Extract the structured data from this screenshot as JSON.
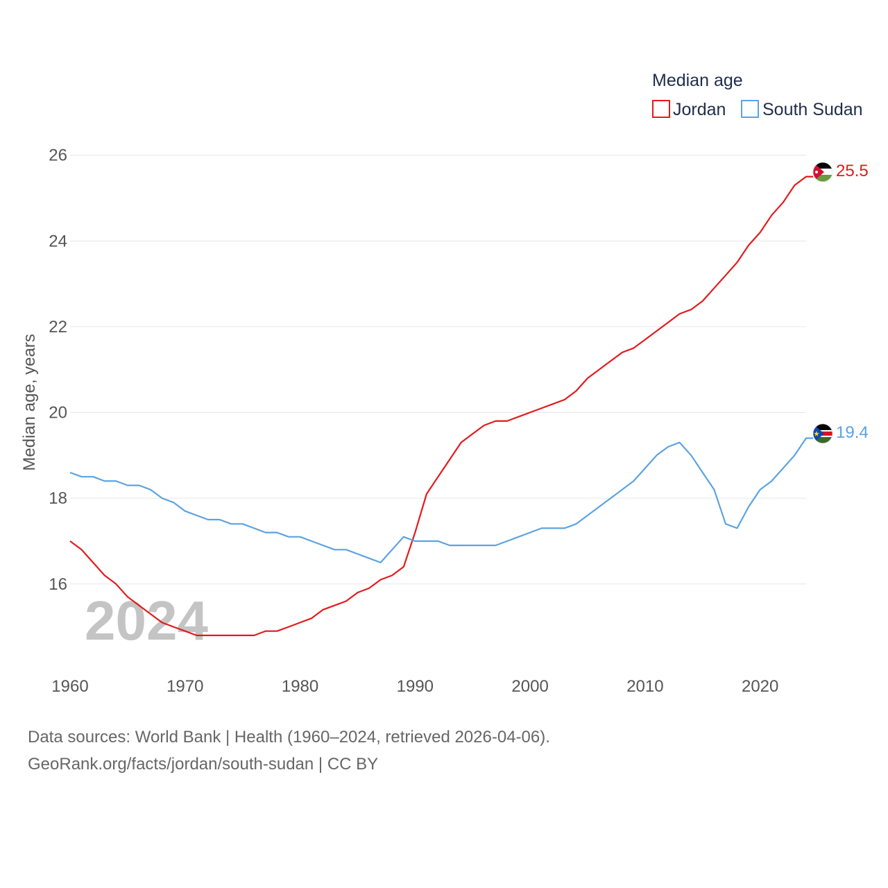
{
  "chart_data": {
    "type": "line",
    "title": "",
    "xlabel": "",
    "ylabel": "Median age, years",
    "xlim": [
      1960,
      2024
    ],
    "ylim": [
      14.2,
      26.4
    ],
    "xticks": [
      1960,
      1970,
      1980,
      1990,
      2000,
      2010,
      2020
    ],
    "yticks": [
      16,
      18,
      20,
      22,
      24,
      26
    ],
    "grid": true,
    "legend": {
      "title": "Median age",
      "position": "top-right"
    },
    "year_label": "2024",
    "series": [
      {
        "name": "Jordan",
        "color": "#e31a1c",
        "end_label": "25.5",
        "flag": "jordan-flag",
        "x": [
          1960,
          1961,
          1962,
          1963,
          1964,
          1965,
          1966,
          1967,
          1968,
          1969,
          1970,
          1971,
          1972,
          1973,
          1974,
          1975,
          1976,
          1977,
          1978,
          1979,
          1980,
          1981,
          1982,
          1983,
          1984,
          1985,
          1986,
          1987,
          1988,
          1989,
          1990,
          1991,
          1992,
          1993,
          1994,
          1995,
          1996,
          1997,
          1998,
          1999,
          2000,
          2001,
          2002,
          2003,
          2004,
          2005,
          2006,
          2007,
          2008,
          2009,
          2010,
          2011,
          2012,
          2013,
          2014,
          2015,
          2016,
          2017,
          2018,
          2019,
          2020,
          2021,
          2022,
          2023,
          2024
        ],
        "values": [
          17.0,
          16.8,
          16.5,
          16.2,
          16.0,
          15.7,
          15.5,
          15.3,
          15.1,
          15.0,
          14.9,
          14.8,
          14.8,
          14.8,
          14.8,
          14.8,
          14.8,
          14.9,
          14.9,
          15.0,
          15.1,
          15.2,
          15.4,
          15.5,
          15.6,
          15.8,
          15.9,
          16.1,
          16.2,
          16.4,
          17.2,
          18.1,
          18.5,
          18.9,
          19.3,
          19.5,
          19.7,
          19.8,
          19.8,
          19.9,
          20.0,
          20.1,
          20.2,
          20.3,
          20.5,
          20.8,
          21.0,
          21.2,
          21.4,
          21.5,
          21.7,
          21.9,
          22.1,
          22.3,
          22.4,
          22.6,
          22.9,
          23.2,
          23.5,
          23.9,
          24.2,
          24.6,
          24.9,
          25.3,
          25.5
        ]
      },
      {
        "name": "South Sudan",
        "color": "#5ba3e0",
        "end_label": "19.4",
        "flag": "south-sudan-flag",
        "x": [
          1960,
          1961,
          1962,
          1963,
          1964,
          1965,
          1966,
          1967,
          1968,
          1969,
          1970,
          1971,
          1972,
          1973,
          1974,
          1975,
          1976,
          1977,
          1978,
          1979,
          1980,
          1981,
          1982,
          1983,
          1984,
          1985,
          1986,
          1987,
          1988,
          1989,
          1990,
          1991,
          1992,
          1993,
          1994,
          1995,
          1996,
          1997,
          1998,
          1999,
          2000,
          2001,
          2002,
          2003,
          2004,
          2005,
          2006,
          2007,
          2008,
          2009,
          2010,
          2011,
          2012,
          2013,
          2014,
          2015,
          2016,
          2017,
          2018,
          2019,
          2020,
          2021,
          2022,
          2023,
          2024
        ],
        "values": [
          18.6,
          18.5,
          18.5,
          18.4,
          18.4,
          18.3,
          18.3,
          18.2,
          18.0,
          17.9,
          17.7,
          17.6,
          17.5,
          17.5,
          17.4,
          17.4,
          17.3,
          17.2,
          17.2,
          17.1,
          17.1,
          17.0,
          16.9,
          16.8,
          16.8,
          16.7,
          16.6,
          16.5,
          16.8,
          17.1,
          17.0,
          17.0,
          17.0,
          16.9,
          16.9,
          16.9,
          16.9,
          16.9,
          17.0,
          17.1,
          17.2,
          17.3,
          17.3,
          17.3,
          17.4,
          17.6,
          17.8,
          18.0,
          18.2,
          18.4,
          18.7,
          19.0,
          19.2,
          19.3,
          19.0,
          18.6,
          18.2,
          17.4,
          17.3,
          17.8,
          18.2,
          18.4,
          18.7,
          19.0,
          19.4
        ]
      }
    ],
    "footer": {
      "line1": "Data sources: World Bank | Health (1960–2024, retrieved 2026-04-06).",
      "line2": "GeoRank.org/facts/jordan/south-sudan | CC BY"
    }
  }
}
